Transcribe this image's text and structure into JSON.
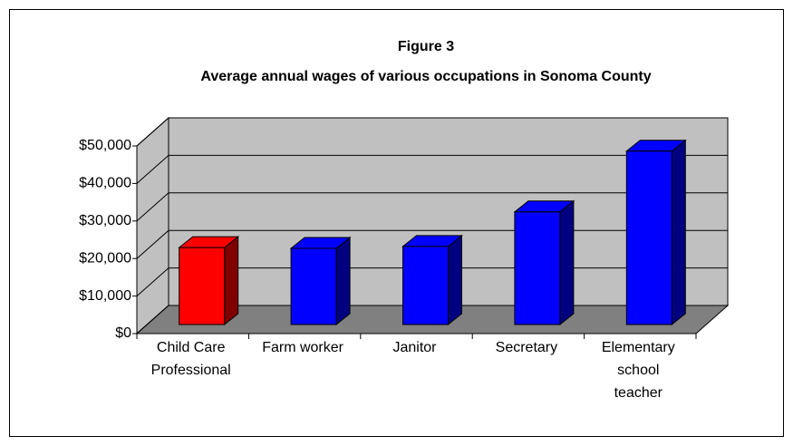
{
  "chart_data": {
    "type": "bar3d",
    "title": "Figure 3",
    "subtitle": "Average annual wages of various occupations in Sonoma County",
    "categories": [
      "Child Care Professional",
      "Farm worker",
      "Janitor",
      "Secretary",
      "Elementary school teacher"
    ],
    "values": [
      20500,
      20300,
      20800,
      30000,
      46200
    ],
    "colors": [
      "#ff0000",
      "#0000ff",
      "#0000ff",
      "#0000ff",
      "#0000ff"
    ],
    "ylim": [
      0,
      50000
    ],
    "yticks": [
      {
        "value": 0,
        "label": "$0"
      },
      {
        "value": 10000,
        "label": "$10,000"
      },
      {
        "value": 20000,
        "label": "$20,000"
      },
      {
        "value": 30000,
        "label": "$30,000"
      },
      {
        "value": 40000,
        "label": "$40,000"
      },
      {
        "value": 50000,
        "label": "$50,000"
      }
    ],
    "grid": true
  }
}
